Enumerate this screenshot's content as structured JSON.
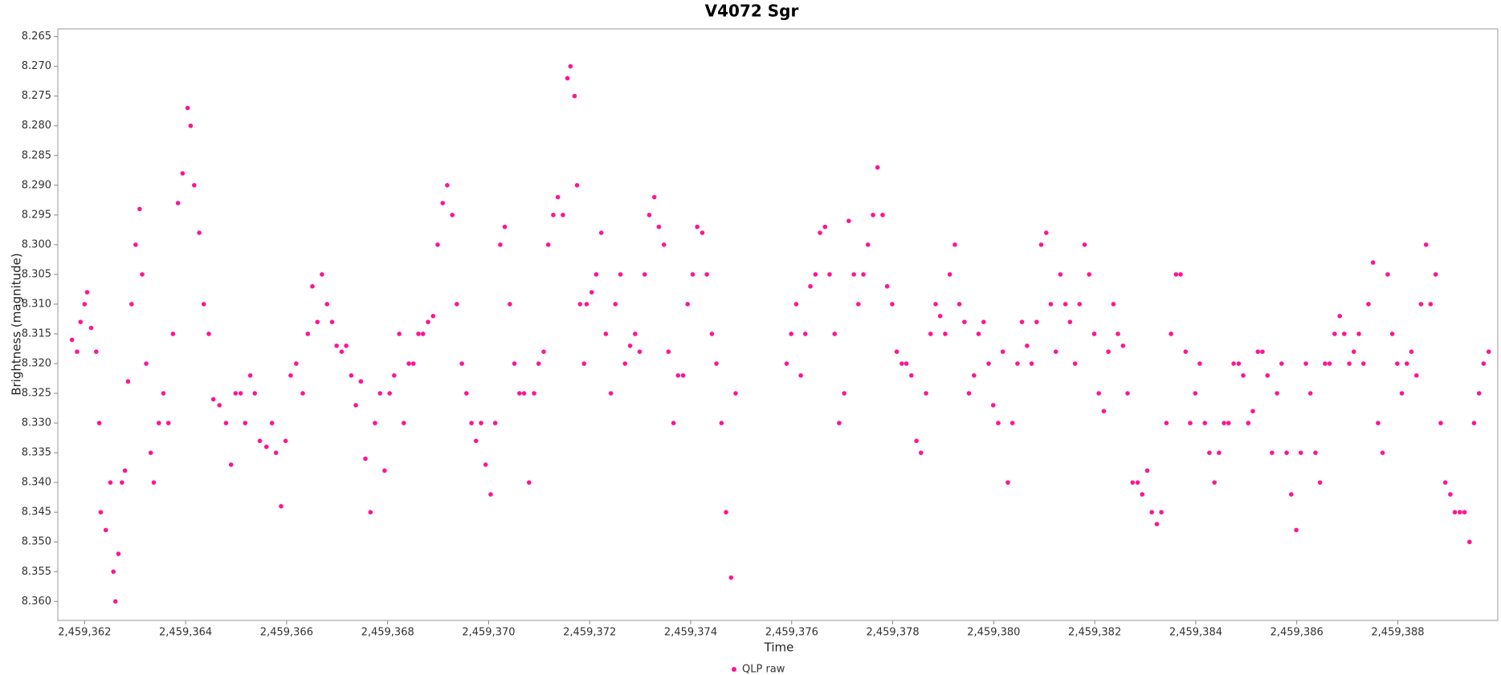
{
  "chart_data": {
    "type": "scatter",
    "title": "V4072 Sgr",
    "x_label": "Time",
    "y_label": "Brightness (magnitude)",
    "legend": "bottom",
    "grid": false,
    "xlim": [
      2459361.47,
      2459389.98
    ],
    "ylim": [
      8.3632,
      8.2637
    ],
    "xticks": [
      {
        "value": 2459362,
        "label": "2,459,362"
      },
      {
        "value": 2459364,
        "label": "2,459,364"
      },
      {
        "value": 2459366,
        "label": "2,459,366"
      },
      {
        "value": 2459368,
        "label": "2,459,368"
      },
      {
        "value": 2459370,
        "label": "2,459,370"
      },
      {
        "value": 2459372,
        "label": "2,459,372"
      },
      {
        "value": 2459374,
        "label": "2,459,374"
      },
      {
        "value": 2459376,
        "label": "2,459,376"
      },
      {
        "value": 2459378,
        "label": "2,459,378"
      },
      {
        "value": 2459380,
        "label": "2,459,380"
      },
      {
        "value": 2459382,
        "label": "2,459,382"
      },
      {
        "value": 2459384,
        "label": "2,459,384"
      },
      {
        "value": 2459386,
        "label": "2,459,386"
      },
      {
        "value": 2459388,
        "label": "2,459,388"
      }
    ],
    "yticks": [
      8.265,
      {
        "value": 8.27,
        "label": "8.270"
      },
      8.275,
      {
        "value": 8.28,
        "label": "8.280"
      },
      8.285,
      {
        "value": 8.29,
        "label": "8.290"
      },
      8.295,
      {
        "value": 8.3,
        "label": "8.300"
      },
      8.305,
      {
        "value": 8.31,
        "label": "8.310"
      },
      8.315,
      {
        "value": 8.32,
        "label": "8.320"
      },
      8.325,
      {
        "value": 8.33,
        "label": "8.330"
      },
      8.335,
      {
        "value": 8.34,
        "label": "8.340"
      },
      8.345,
      {
        "value": 8.35,
        "label": "8.350"
      },
      8.355,
      {
        "value": 8.36,
        "label": "8.360"
      }
    ],
    "x": [
      2459361.75,
      2459361.85,
      2459361.92,
      2459362.0,
      2459362.05,
      2459362.13,
      2459362.23,
      2459362.29,
      2459362.32,
      2459362.42,
      2459362.51,
      2459362.57,
      2459362.61,
      2459362.67,
      2459362.74,
      2459362.8,
      2459362.86,
      2459362.93,
      2459363.01,
      2459363.09,
      2459363.14,
      2459363.22,
      2459363.31,
      2459363.37,
      2459363.47,
      2459363.56,
      2459363.66,
      2459363.75,
      2459363.85,
      2459363.94,
      2459364.04,
      2459364.1,
      2459364.17,
      2459364.27,
      2459364.36,
      2459364.46,
      2459364.55,
      2459364.67,
      2459364.8,
      2459364.9,
      2459364.99,
      2459365.09,
      2459365.18,
      2459365.28,
      2459365.37,
      2459365.47,
      2459365.6,
      2459365.71,
      2459365.79,
      2459365.89,
      2459365.98,
      2459366.08,
      2459366.19,
      2459366.32,
      2459366.42,
      2459366.51,
      2459366.61,
      2459366.7,
      2459366.8,
      2459366.9,
      2459366.99,
      2459367.09,
      2459367.18,
      2459367.28,
      2459367.37,
      2459367.47,
      2459367.56,
      2459367.66,
      2459367.75,
      2459367.85,
      2459367.94,
      2459368.04,
      2459368.13,
      2459368.23,
      2459368.32,
      2459368.42,
      2459368.51,
      2459368.61,
      2459368.7,
      2459368.8,
      2459368.9,
      2459368.99,
      2459369.09,
      2459369.18,
      2459369.28,
      2459369.37,
      2459369.47,
      2459369.56,
      2459369.66,
      2459369.75,
      2459369.85,
      2459369.94,
      2459370.04,
      2459370.13,
      2459370.23,
      2459370.32,
      2459370.42,
      2459370.51,
      2459370.61,
      2459370.7,
      2459370.8,
      2459370.9,
      2459370.99,
      2459371.09,
      2459371.18,
      2459371.28,
      2459371.37,
      2459371.47,
      2459371.56,
      2459371.62,
      2459371.7,
      2459371.75,
      2459371.81,
      2459371.89,
      2459371.94,
      2459372.04,
      2459372.13,
      2459372.23,
      2459372.32,
      2459372.42,
      2459372.51,
      2459372.61,
      2459372.7,
      2459372.8,
      2459372.9,
      2459372.99,
      2459373.09,
      2459373.18,
      2459373.28,
      2459373.37,
      2459373.47,
      2459373.56,
      2459373.66,
      2459373.75,
      2459373.85,
      2459373.94,
      2459374.04,
      2459374.13,
      2459374.23,
      2459374.32,
      2459374.42,
      2459374.51,
      2459374.61,
      2459374.7,
      2459374.8,
      2459374.89,
      2459375.9,
      2459375.99,
      2459376.09,
      2459376.18,
      2459376.27,
      2459376.37,
      2459376.47,
      2459376.56,
      2459376.66,
      2459376.75,
      2459376.85,
      2459376.94,
      2459377.04,
      2459377.13,
      2459377.23,
      2459377.32,
      2459377.42,
      2459377.51,
      2459377.61,
      2459377.7,
      2459377.8,
      2459377.89,
      2459377.99,
      2459378.08,
      2459378.18,
      2459378.27,
      2459378.37,
      2459378.47,
      2459378.56,
      2459378.66,
      2459378.75,
      2459378.85,
      2459378.94,
      2459379.04,
      2459379.13,
      2459379.23,
      2459379.32,
      2459379.42,
      2459379.51,
      2459379.61,
      2459379.7,
      2459379.8,
      2459379.9,
      2459379.99,
      2459380.09,
      2459380.18,
      2459380.28,
      2459380.37,
      2459380.47,
      2459380.56,
      2459380.66,
      2459380.75,
      2459380.85,
      2459380.94,
      2459381.04,
      2459381.13,
      2459381.23,
      2459381.32,
      2459381.42,
      2459381.51,
      2459381.61,
      2459381.7,
      2459381.8,
      2459381.89,
      2459381.99,
      2459382.08,
      2459382.18,
      2459382.27,
      2459382.37,
      2459382.46,
      2459382.56,
      2459382.65,
      2459382.75,
      2459382.85,
      2459382.94,
      2459383.04,
      2459383.13,
      2459383.23,
      2459383.32,
      2459383.42,
      2459383.51,
      2459383.61,
      2459383.7,
      2459383.8,
      2459383.89,
      2459383.99,
      2459384.08,
      2459384.18,
      2459384.27,
      2459384.37,
      2459384.46,
      2459384.56,
      2459384.65,
      2459384.75,
      2459384.85,
      2459384.94,
      2459385.04,
      2459385.13,
      2459385.23,
      2459385.32,
      2459385.42,
      2459385.51,
      2459385.61,
      2459385.7,
      2459385.8,
      2459385.89,
      2459385.99,
      2459386.08,
      2459386.18,
      2459386.27,
      2459386.37,
      2459386.46,
      2459386.56,
      2459386.65,
      2459386.75,
      2459386.85,
      2459386.94,
      2459387.04,
      2459387.13,
      2459387.23,
      2459387.32,
      2459387.42,
      2459387.51,
      2459387.61,
      2459387.7,
      2459387.8,
      2459387.89,
      2459387.99,
      2459388.08,
      2459388.18,
      2459388.27,
      2459388.37,
      2459388.46,
      2459388.56,
      2459388.65,
      2459388.75,
      2459388.85,
      2459388.94,
      2459389.04,
      2459389.13,
      2459389.23,
      2459389.32,
      2459389.42,
      2459389.51,
      2459389.61,
      2459389.7,
      2459389.8
    ],
    "series": [
      {
        "name": "QLP raw",
        "color": "#ff1493",
        "values": [
          8.316,
          8.318,
          8.313,
          8.31,
          8.308,
          8.314,
          8.318,
          8.33,
          8.345,
          8.348,
          8.34,
          8.355,
          8.36,
          8.352,
          8.34,
          8.338,
          8.323,
          8.31,
          8.3,
          8.294,
          8.305,
          8.32,
          8.335,
          8.34,
          8.33,
          8.325,
          8.33,
          8.315,
          8.293,
          8.288,
          8.277,
          8.28,
          8.29,
          8.298,
          8.31,
          8.315,
          8.326,
          8.327,
          8.33,
          8.337,
          8.325,
          8.325,
          8.33,
          8.322,
          8.325,
          8.333,
          8.334,
          8.33,
          8.335,
          8.344,
          8.333,
          8.322,
          8.32,
          8.325,
          8.315,
          8.307,
          8.313,
          8.305,
          8.31,
          8.313,
          8.317,
          8.318,
          8.317,
          8.322,
          8.327,
          8.323,
          8.336,
          8.345,
          8.33,
          8.325,
          8.338,
          8.325,
          8.322,
          8.315,
          8.33,
          8.32,
          8.32,
          8.315,
          8.315,
          8.313,
          8.312,
          8.3,
          8.293,
          8.29,
          8.295,
          8.31,
          8.32,
          8.325,
          8.33,
          8.333,
          8.33,
          8.337,
          8.342,
          8.33,
          8.3,
          8.297,
          8.31,
          8.32,
          8.325,
          8.325,
          8.34,
          8.325,
          8.32,
          8.318,
          8.3,
          8.295,
          8.292,
          8.295,
          8.272,
          8.27,
          8.275,
          8.29,
          8.31,
          8.32,
          8.31,
          8.308,
          8.305,
          8.298,
          8.315,
          8.325,
          8.31,
          8.305,
          8.32,
          8.317,
          8.315,
          8.318,
          8.305,
          8.295,
          8.292,
          8.297,
          8.3,
          8.318,
          8.33,
          8.322,
          8.322,
          8.31,
          8.305,
          8.297,
          8.298,
          8.305,
          8.315,
          8.32,
          8.33,
          8.345,
          8.356,
          8.325,
          8.32,
          8.315,
          8.31,
          8.322,
          8.315,
          8.307,
          8.305,
          8.298,
          8.297,
          8.305,
          8.315,
          8.33,
          8.325,
          8.296,
          8.305,
          8.31,
          8.305,
          8.3,
          8.295,
          8.287,
          8.295,
          8.307,
          8.31,
          8.318,
          8.32,
          8.32,
          8.322,
          8.333,
          8.335,
          8.325,
          8.315,
          8.31,
          8.312,
          8.315,
          8.305,
          8.3,
          8.31,
          8.313,
          8.325,
          8.322,
          8.315,
          8.313,
          8.32,
          8.327,
          8.33,
          8.318,
          8.34,
          8.33,
          8.32,
          8.313,
          8.317,
          8.32,
          8.313,
          8.3,
          8.298,
          8.31,
          8.318,
          8.305,
          8.31,
          8.313,
          8.32,
          8.31,
          8.3,
          8.305,
          8.315,
          8.325,
          8.328,
          8.318,
          8.31,
          8.315,
          8.317,
          8.325,
          8.34,
          8.34,
          8.342,
          8.338,
          8.345,
          8.347,
          8.345,
          8.33,
          8.315,
          8.305,
          8.305,
          8.318,
          8.33,
          8.325,
          8.32,
          8.33,
          8.335,
          8.34,
          8.335,
          8.33,
          8.33,
          8.32,
          8.32,
          8.322,
          8.33,
          8.328,
          8.318,
          8.318,
          8.322,
          8.335,
          8.325,
          8.32,
          8.335,
          8.342,
          8.348,
          8.335,
          8.32,
          8.325,
          8.335,
          8.34,
          8.32,
          8.32,
          8.315,
          8.312,
          8.315,
          8.32,
          8.318,
          8.315,
          8.32,
          8.31,
          8.303,
          8.33,
          8.335,
          8.305,
          8.315,
          8.32,
          8.325,
          8.32,
          8.318,
          8.322,
          8.31,
          8.3,
          8.31,
          8.305,
          8.33,
          8.34,
          8.342,
          8.345,
          8.345,
          8.345,
          8.35,
          8.33,
          8.325,
          8.32,
          8.318
        ]
      }
    ]
  }
}
